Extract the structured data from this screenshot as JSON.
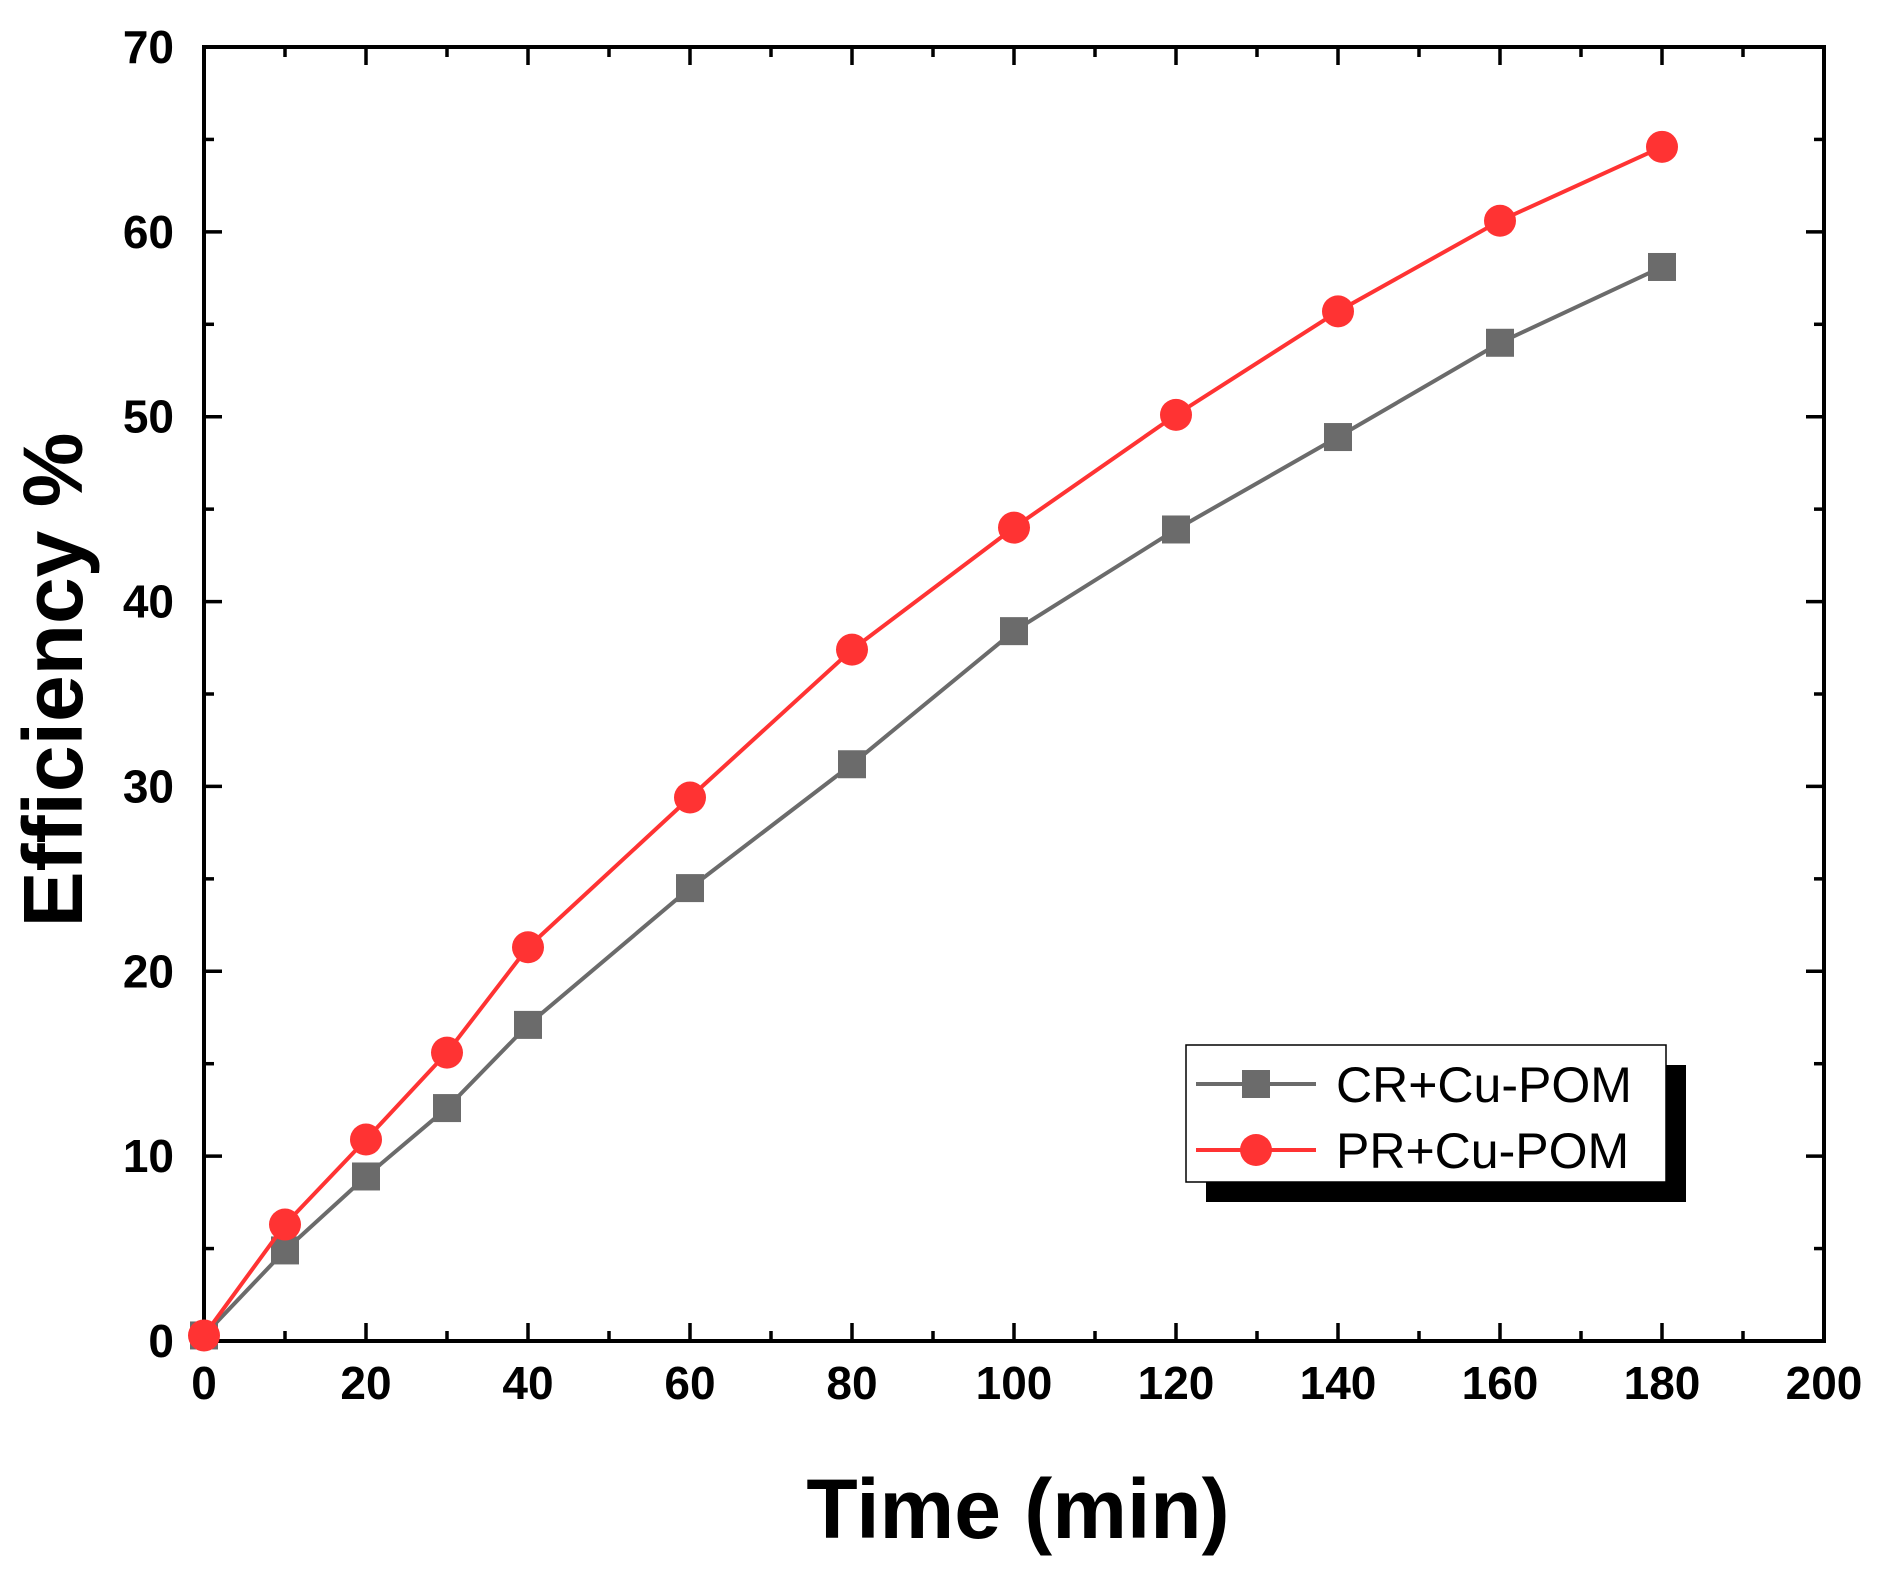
{
  "chart_data": {
    "type": "line",
    "title": "",
    "xlabel": "Time (min)",
    "ylabel": "Efficiency %",
    "xlim": [
      0,
      200
    ],
    "ylim": [
      0,
      70
    ],
    "xticks": [
      0,
      20,
      40,
      60,
      80,
      100,
      120,
      140,
      160,
      180,
      200
    ],
    "xtick_labels": [
      "0",
      "20",
      "40",
      "60",
      "80",
      "100",
      "120",
      "140",
      "160",
      "180",
      "200"
    ],
    "yticks": [
      0,
      10,
      20,
      30,
      40,
      50,
      60,
      70
    ],
    "ytick_labels": [
      "0",
      "10",
      "20",
      "30",
      "40",
      "50",
      "60",
      "70"
    ],
    "grid": false,
    "legend_position": "lower-right",
    "series": [
      {
        "name": "CR+Cu-POM",
        "marker": "square",
        "color": "#6b6b6b",
        "x": [
          0,
          10,
          20,
          30,
          40,
          60,
          80,
          100,
          120,
          140,
          160,
          180
        ],
        "y": [
          0.3,
          4.9,
          8.9,
          12.6,
          17.1,
          24.5,
          31.2,
          38.4,
          43.9,
          48.9,
          54.0,
          58.1
        ]
      },
      {
        "name": "PR+Cu-POM",
        "marker": "circle",
        "color": "#ff3333",
        "x": [
          0,
          10,
          20,
          30,
          40,
          60,
          80,
          100,
          120,
          140,
          160,
          180
        ],
        "y": [
          0.3,
          6.3,
          10.9,
          15.6,
          21.3,
          29.4,
          37.4,
          44.0,
          50.1,
          55.7,
          60.6,
          64.6
        ]
      }
    ]
  }
}
